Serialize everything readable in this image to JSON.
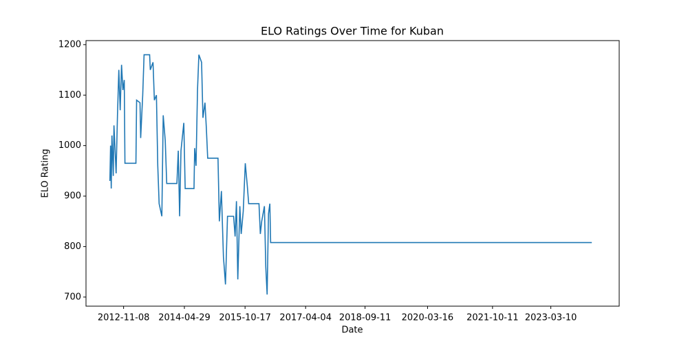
{
  "chart_data": {
    "type": "line",
    "title": "ELO Ratings Over Time for Kuban",
    "x_label": "Date",
    "y_label": "ELO Rating",
    "x": [
      "2012-07-10",
      "2012-07-16",
      "2012-07-22",
      "2012-07-28",
      "2012-08-09",
      "2012-08-15",
      "2012-09-03",
      "2012-09-15",
      "2012-09-27",
      "2012-10-09",
      "2012-10-21",
      "2012-11-02",
      "2012-11-14",
      "2012-11-20",
      "2013-02-25",
      "2013-03-03",
      "2013-04-02",
      "2013-04-08",
      "2013-04-26",
      "2013-05-08",
      "2013-06-26",
      "2013-07-02",
      "2013-07-26",
      "2013-08-07",
      "2013-08-25",
      "2013-09-06",
      "2013-09-18",
      "2013-10-12",
      "2013-10-24",
      "2013-11-11",
      "2013-11-24",
      "2014-02-22",
      "2014-03-06",
      "2014-03-18",
      "2014-03-30",
      "2014-04-24",
      "2014-05-06",
      "2014-07-23",
      "2014-07-29",
      "2014-08-10",
      "2014-08-23",
      "2014-09-04",
      "2014-09-28",
      "2014-10-10",
      "2014-10-28",
      "2014-11-09",
      "2014-11-21",
      "2015-02-20",
      "2015-03-04",
      "2015-03-22",
      "2015-04-09",
      "2015-04-27",
      "2015-05-15",
      "2015-07-08",
      "2015-07-21",
      "2015-08-02",
      "2015-08-14",
      "2015-09-01",
      "2015-09-13",
      "2015-10-01",
      "2015-10-19",
      "2015-11-06",
      "2015-11-18",
      "2016-02-17",
      "2016-02-29",
      "2016-03-12",
      "2016-04-05",
      "2016-04-17",
      "2016-04-29",
      "2016-05-11",
      "2016-05-23",
      "2016-05-30",
      "2024-03-06"
    ],
    "series": [
      {
        "name": "Kuban",
        "color": "#1f77b4",
        "values": [
          930,
          1000,
          915,
          1020,
          940,
          1040,
          945,
          1060,
          1150,
          1070,
          1160,
          1110,
          1130,
          965,
          965,
          1090,
          1085,
          1015,
          1100,
          1180,
          1180,
          1150,
          1165,
          1090,
          1100,
          960,
          885,
          860,
          1060,
          1010,
          925,
          925,
          990,
          860,
          990,
          1045,
          915,
          915,
          995,
          960,
          1110,
          1180,
          1165,
          1055,
          1085,
          1035,
          975,
          975,
          850,
          910,
          780,
          725,
          860,
          860,
          820,
          890,
          735,
          880,
          825,
          870,
          965,
          920,
          885,
          885,
          825,
          850,
          880,
          760,
          705,
          865,
          885,
          808,
          808
        ]
      }
    ],
    "xlim": [
      "2011-12-12",
      "2024-11-03"
    ],
    "xticks": [
      "2012-11-08",
      "2014-04-29",
      "2015-10-17",
      "2017-04-04",
      "2018-09-11",
      "2020-03-16",
      "2021-10-11",
      "2023-03-10"
    ],
    "ylim": [
      682,
      1208
    ],
    "yticks": [
      700,
      800,
      900,
      1000,
      1100,
      1200
    ]
  }
}
